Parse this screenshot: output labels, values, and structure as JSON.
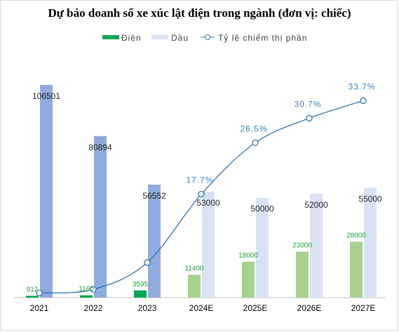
{
  "chart_data": {
    "type": "bar",
    "title": "Dự báo doanh số xe xúc lật điện trong ngành (đơn vị: chiếc)",
    "categories": [
      "2021",
      "2022",
      "2023",
      "2024E",
      "2025E",
      "2026E",
      "2027E"
    ],
    "series": [
      {
        "name": "Điện",
        "type": "bar",
        "values": [
          912,
          1160,
          3595,
          11400,
          18000,
          23000,
          28000
        ]
      },
      {
        "name": "Dầu",
        "type": "bar",
        "values": [
          106501,
          80894,
          56552,
          53000,
          50000,
          52000,
          55000
        ]
      },
      {
        "name": "Tỷ lệ chiếm thị phần",
        "type": "line",
        "axis": "secondary",
        "values": [
          0.8,
          1.4,
          6.0,
          17.7,
          26.5,
          30.7,
          33.7
        ],
        "labels": [
          "",
          "",
          "",
          "17.7%",
          "26.5%",
          "30.7%",
          "33.7%"
        ]
      }
    ],
    "legend_position": "top",
    "grid": false,
    "ylim": [
      0,
      110000
    ],
    "y2lim": [
      0,
      40
    ],
    "colors": {
      "ev_actual": "#00a651",
      "ev_forecast": "#a9d18e",
      "oil_actual": "#8faadc",
      "oil_forecast": "#dae3f3",
      "line": "#2e75b6"
    }
  }
}
